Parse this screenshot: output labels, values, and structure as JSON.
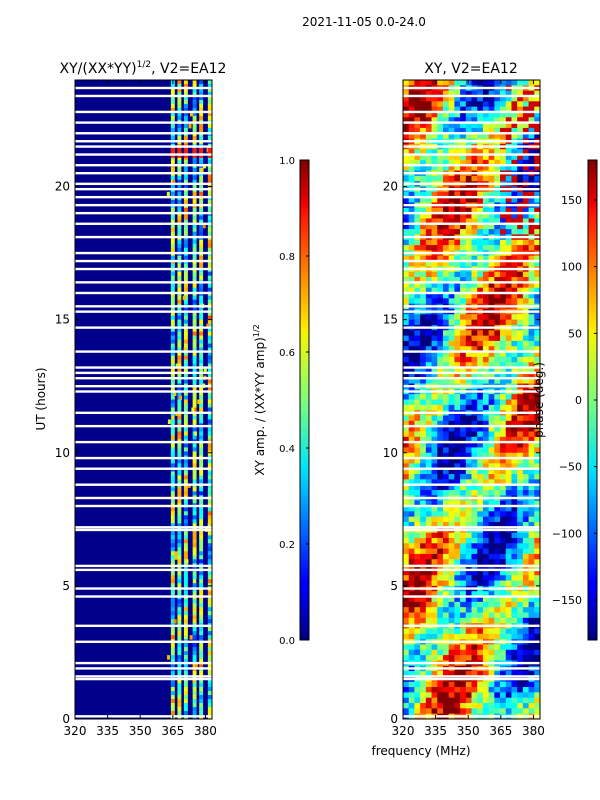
{
  "suptitle": "2021-11-05 0.0-24.0",
  "chart_data": [
    {
      "type": "heatmap",
      "title": "XY/(XX*YY)",
      "title_superscript": "1/2",
      "title_suffix": ", V2=EA12",
      "ylabel": "UT (hours)",
      "xlim": [
        320,
        383
      ],
      "ylim": [
        0,
        24
      ],
      "x_ticks": [
        "320",
        "335",
        "350",
        "365",
        "380"
      ],
      "x_tick_values": [
        320,
        335,
        350,
        365,
        380
      ],
      "y_ticks": [
        "0",
        "5",
        "10",
        "15",
        "20"
      ],
      "y_tick_values": [
        0,
        5,
        10,
        15,
        20
      ],
      "colorbar": {
        "label": "XY amp. / (XX*YY amp)",
        "label_superscript": "1/2",
        "range": [
          0.0,
          1.0
        ],
        "ticks": [
          "0.0",
          "0.2",
          "0.4",
          "0.6",
          "0.8",
          "1.0"
        ],
        "tick_values": [
          0.0,
          0.2,
          0.4,
          0.6,
          0.8,
          1.0
        ]
      },
      "background_color": "#00008b",
      "flagged_hours": [
        0.1,
        1.5,
        1.6,
        1.9,
        2.1,
        2.9,
        3.5,
        4.6,
        4.9,
        5.6,
        5.75,
        7.1,
        7.2,
        8.0,
        8.3,
        8.8,
        9.4,
        9.8,
        10.4,
        11.0,
        11.5,
        12.3,
        12.5,
        12.8,
        13.0,
        13.2,
        13.8,
        14.7,
        15.3,
        15.5,
        16.0,
        16.4,
        16.9,
        17.2,
        17.5,
        18.1,
        18.6,
        19.0,
        19.3,
        19.6,
        19.9,
        20.1,
        20.5,
        20.8,
        21.2,
        21.5,
        21.7,
        22.0,
        22.4,
        22.8,
        23.4,
        23.7
      ],
      "active_channels": [
        365,
        368,
        371,
        375,
        378,
        382
      ]
    },
    {
      "type": "heatmap",
      "title": "XY, V2=EA12",
      "xlabel": "frequency (MHz)",
      "xlim": [
        320,
        383
      ],
      "ylim": [
        0,
        24
      ],
      "x_ticks": [
        "320",
        "335",
        "350",
        "365",
        "380"
      ],
      "x_tick_values": [
        320,
        335,
        350,
        365,
        380
      ],
      "y_ticks": [
        "0",
        "5",
        "10",
        "15",
        "20"
      ],
      "y_tick_values": [
        0,
        5,
        10,
        15,
        20
      ],
      "colorbar": {
        "label": "phase (deg.)",
        "range": [
          -180,
          180
        ],
        "ticks": [
          "−150",
          "−100",
          "−50",
          "0",
          "50",
          "100",
          "150"
        ],
        "tick_values": [
          -150,
          -100,
          -50,
          0,
          50,
          100,
          150
        ]
      },
      "flagged_hours": [
        0.1,
        1.5,
        1.6,
        1.9,
        2.1,
        2.9,
        3.5,
        4.6,
        4.9,
        5.6,
        5.75,
        7.1,
        7.2,
        8.0,
        8.3,
        8.8,
        9.4,
        9.8,
        10.4,
        11.0,
        11.5,
        12.3,
        12.5,
        12.8,
        13.0,
        13.2,
        13.8,
        14.7,
        15.3,
        15.5,
        16.0,
        16.4,
        16.9,
        17.2,
        17.5,
        18.1,
        18.6,
        19.0,
        19.3,
        19.6,
        19.9,
        20.1,
        20.5,
        20.8,
        21.2,
        21.5,
        21.7,
        22.0,
        22.4,
        22.8,
        23.4,
        23.7
      ]
    }
  ]
}
